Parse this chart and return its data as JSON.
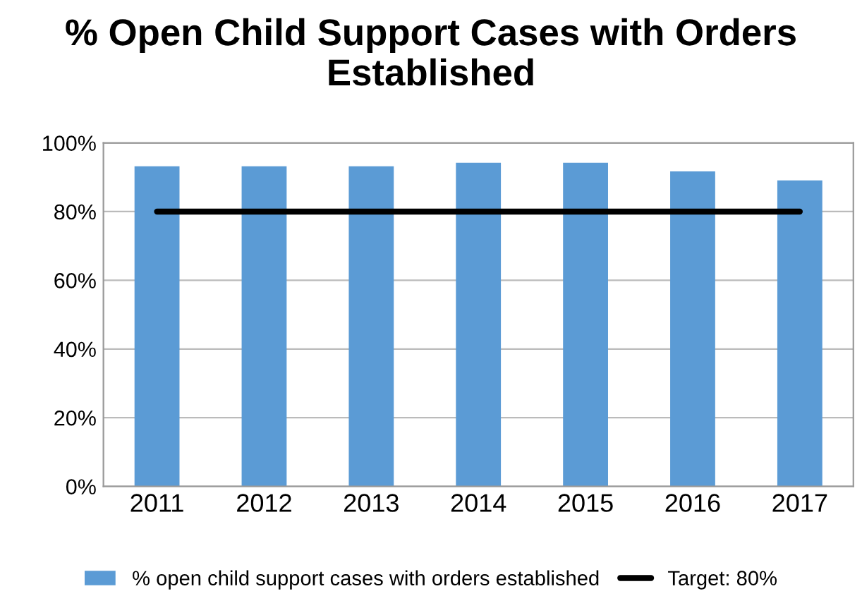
{
  "chart_data": {
    "type": "bar",
    "title": "% Open Child Support Cases with Orders Established",
    "categories": [
      "2011",
      "2012",
      "2013",
      "2014",
      "2015",
      "2016",
      "2017"
    ],
    "series": [
      {
        "name": "% open child support cases with orders established",
        "color": "#5b9bd5",
        "values": [
          93.2,
          93.2,
          93.2,
          94.2,
          94.2,
          91.7,
          89.1
        ]
      },
      {
        "name": "Target: 80%",
        "type": "line",
        "color": "#000000",
        "values": [
          80,
          80,
          80,
          80,
          80,
          80,
          80
        ]
      }
    ],
    "ylim": [
      0,
      100
    ],
    "yticks": [
      {
        "value": 0,
        "label": "0%"
      },
      {
        "value": 20,
        "label": "20%"
      },
      {
        "value": 40,
        "label": "40%"
      },
      {
        "value": 60,
        "label": "60%"
      },
      {
        "value": 80,
        "label": "80%"
      },
      {
        "value": 100,
        "label": "100%"
      }
    ],
    "grid": "y",
    "legend": "bottom"
  }
}
